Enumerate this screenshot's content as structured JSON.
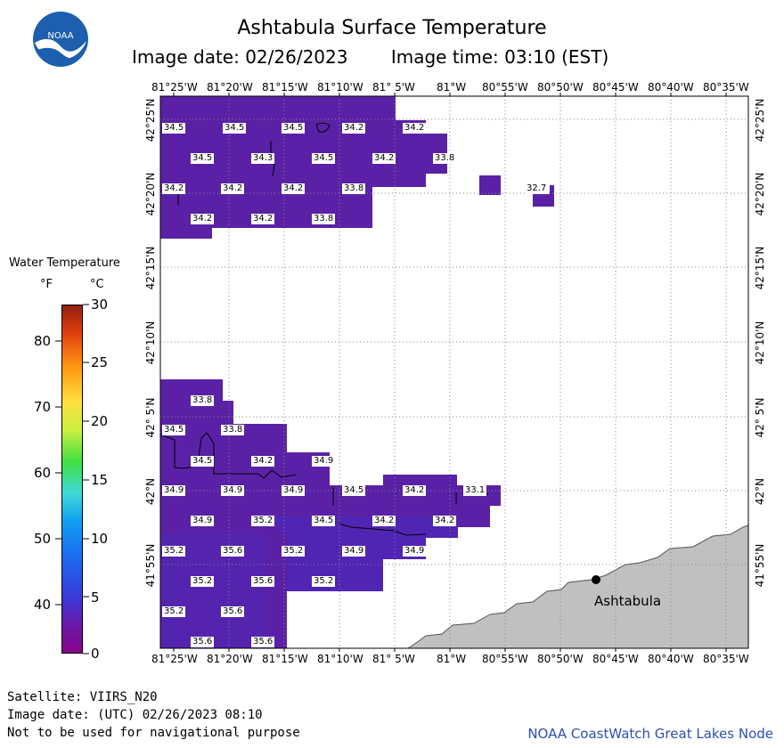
{
  "header": {
    "title": "Ashtabula Surface Temperature",
    "image_date": "Image date: 02/26/2023",
    "image_time": "Image time: 03:10 (EST)"
  },
  "logo": {
    "text": "NOAA"
  },
  "map": {
    "lon_labels": [
      "81°25'W",
      "81°20'W",
      "81°15'W",
      "81°10'W",
      "81° 5'W",
      "81°W",
      "80°55'W",
      "80°50'W",
      "80°45'W",
      "80°40'W",
      "80°35'W"
    ],
    "lat_labels": [
      "42°25'N",
      "42°20'N",
      "42°15'N",
      "42°10'N",
      "42° 5'N",
      "42°N",
      "41°55'N"
    ],
    "city": "Ashtabula",
    "sst_labels": [
      "34.5",
      "34.5",
      "34.5",
      "34.2",
      "34.2",
      "34.5",
      "34.3",
      "34.5",
      "34.2",
      "33.8",
      "34.2",
      "34.2",
      "34.2",
      "33.8",
      "32.7",
      "34.2",
      "34.2",
      "33.8",
      "33.8",
      "34.5",
      "33.8",
      "34.5",
      "34.2",
      "34.9",
      "34.9",
      "34.9",
      "34.9",
      "34.5",
      "34.2",
      "33.1",
      "34.9",
      "35.2",
      "34.5",
      "34.2",
      "34.2",
      "35.2",
      "35.6",
      "35.2",
      "34.9",
      "34.9",
      "35.2",
      "35.6",
      "35.2",
      "35.2",
      "35.6",
      "35.6",
      "35.6"
    ]
  },
  "legend": {
    "title": "Water Temperature",
    "unit_f": "°F",
    "unit_c": "°C",
    "f_ticks": [
      "80",
      "70",
      "60",
      "50",
      "40"
    ],
    "c_ticks": [
      "30",
      "25",
      "20",
      "15",
      "10",
      "5",
      "0"
    ]
  },
  "footer": {
    "satellite": "Satellite: VIIRS_N20",
    "utc_date": "Image date: (UTC) 02/26/2023  08:10",
    "disclaimer": "Not to be used for navigational purpose",
    "credit": "NOAA CoastWatch Great Lakes Node"
  },
  "colors": {
    "water_purple": "#5a1fa8",
    "water_blue_purple": "#4a2fc0",
    "land": "#c0c0c0"
  }
}
